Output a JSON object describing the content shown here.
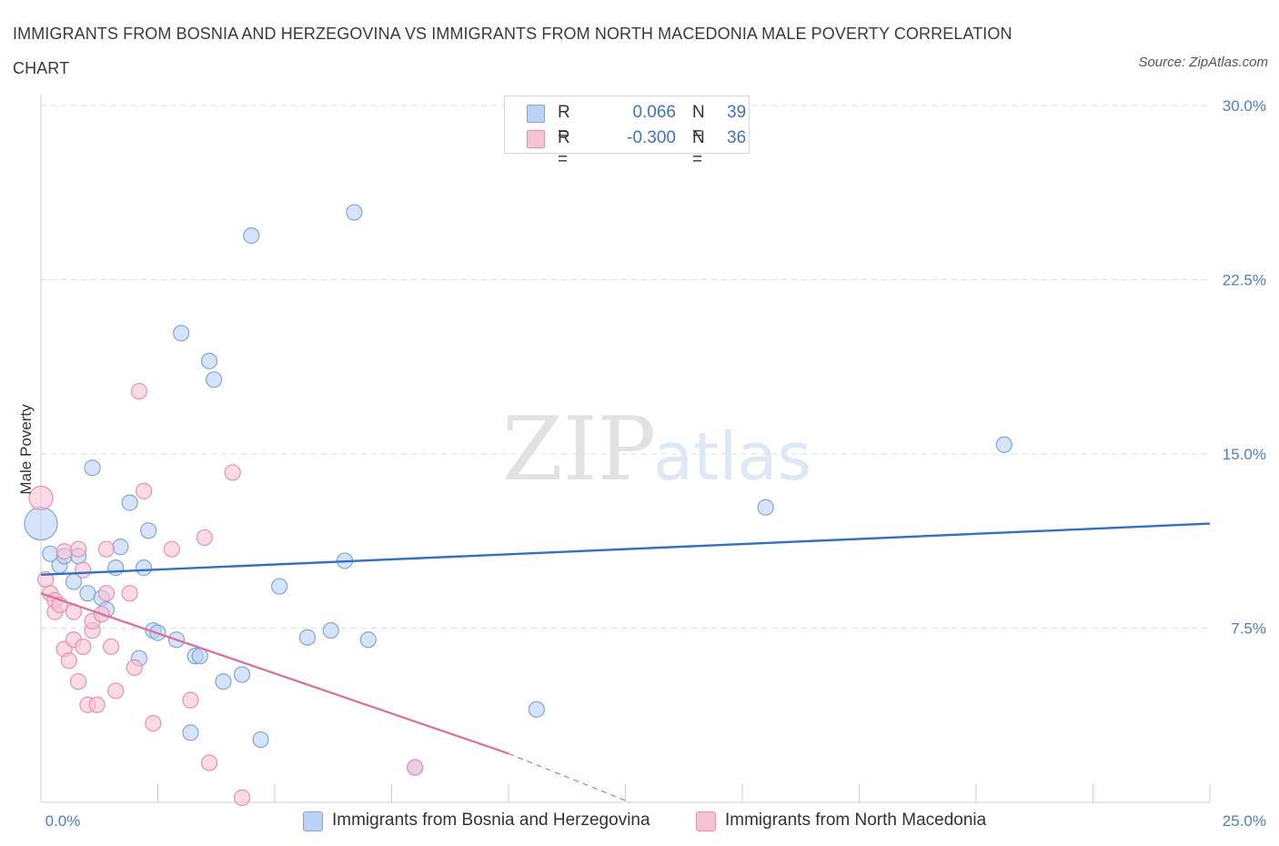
{
  "title": "IMMIGRANTS FROM BOSNIA AND HERZEGOVINA VS IMMIGRANTS FROM NORTH MACEDONIA MALE POVERTY CORRELATION CHART",
  "source": "Source: ZipAtlas.com",
  "watermark": {
    "zip": "ZIP",
    "atlas": "atlas"
  },
  "legend": {
    "series1": {
      "r_label": "R =",
      "r_value": "0.066",
      "n_label": "N =",
      "n_value": "39"
    },
    "series2": {
      "r_label": "R =",
      "r_value": "-0.300",
      "n_label": "N =",
      "n_value": "36"
    }
  },
  "colors": {
    "blue_fill": "#b9d2f5",
    "blue_stroke": "#7fa6dd",
    "blue_line": "#2f6fcf",
    "pink_fill": "#f7c2d3",
    "pink_stroke": "#e891ad",
    "pink_line": "#e06b94",
    "tick_text": "#4a7fcb",
    "grid": "#dedede"
  },
  "chart_data": {
    "type": "scatter",
    "ylabel": "Male Poverty",
    "xlim": [
      0,
      25
    ],
    "ylim": [
      0,
      30
    ],
    "y_ticks": [
      7.5,
      15.0,
      22.5,
      30.0
    ],
    "y_tick_labels": [
      "7.5%",
      "15.0%",
      "22.5%",
      "30.0%"
    ],
    "x_tick_labels": [
      "0.0%",
      "25.0%"
    ],
    "grid": true,
    "series": [
      {
        "name": "Immigrants from Bosnia and Herzegovina",
        "color": "#b9d2f5",
        "points": [
          [
            0.0,
            12.0
          ],
          [
            0.2,
            10.7
          ],
          [
            0.4,
            10.2
          ],
          [
            0.5,
            10.6
          ],
          [
            0.7,
            9.5
          ],
          [
            0.8,
            10.6
          ],
          [
            1.0,
            9.0
          ],
          [
            1.3,
            8.8
          ],
          [
            1.4,
            8.3
          ],
          [
            1.6,
            10.1
          ],
          [
            1.7,
            11.0
          ],
          [
            1.1,
            14.4
          ],
          [
            1.9,
            12.9
          ],
          [
            2.1,
            6.2
          ],
          [
            2.2,
            10.1
          ],
          [
            2.3,
            11.7
          ],
          [
            2.4,
            7.4
          ],
          [
            2.5,
            7.3
          ],
          [
            2.9,
            7.0
          ],
          [
            3.0,
            20.2
          ],
          [
            3.2,
            3.0
          ],
          [
            3.3,
            6.3
          ],
          [
            3.4,
            6.3
          ],
          [
            3.6,
            19.0
          ],
          [
            3.7,
            18.2
          ],
          [
            3.9,
            5.2
          ],
          [
            4.3,
            5.5
          ],
          [
            4.5,
            24.4
          ],
          [
            4.7,
            2.7
          ],
          [
            5.1,
            9.3
          ],
          [
            5.7,
            7.1
          ],
          [
            6.2,
            7.4
          ],
          [
            6.5,
            10.4
          ],
          [
            6.7,
            25.4
          ],
          [
            7.0,
            7.0
          ],
          [
            8.0,
            1.5
          ],
          [
            10.6,
            4.0
          ],
          [
            15.5,
            12.7
          ],
          [
            20.6,
            15.4
          ]
        ],
        "trend": {
          "x": [
            0,
            25
          ],
          "y": [
            9.8,
            12.0
          ]
        }
      },
      {
        "name": "Immigrants from North Macedonia",
        "color": "#f7c2d3",
        "points": [
          [
            0.0,
            13.1
          ],
          [
            0.1,
            9.6
          ],
          [
            0.2,
            9.0
          ],
          [
            0.3,
            8.2
          ],
          [
            0.3,
            8.7
          ],
          [
            0.4,
            8.5
          ],
          [
            0.5,
            10.8
          ],
          [
            0.5,
            6.6
          ],
          [
            0.6,
            6.1
          ],
          [
            0.7,
            7.0
          ],
          [
            0.7,
            8.2
          ],
          [
            0.8,
            10.9
          ],
          [
            0.8,
            5.2
          ],
          [
            0.9,
            10.0
          ],
          [
            0.9,
            6.7
          ],
          [
            1.0,
            4.2
          ],
          [
            1.1,
            7.4
          ],
          [
            1.1,
            7.8
          ],
          [
            1.2,
            4.2
          ],
          [
            1.3,
            8.1
          ],
          [
            1.4,
            9.0
          ],
          [
            1.4,
            10.9
          ],
          [
            1.5,
            6.7
          ],
          [
            1.6,
            4.8
          ],
          [
            1.9,
            9.0
          ],
          [
            2.0,
            5.8
          ],
          [
            2.1,
            17.7
          ],
          [
            2.2,
            13.4
          ],
          [
            2.4,
            3.4
          ],
          [
            2.8,
            10.9
          ],
          [
            3.2,
            4.4
          ],
          [
            3.5,
            11.4
          ],
          [
            3.6,
            1.7
          ],
          [
            4.1,
            14.2
          ],
          [
            4.3,
            0.2
          ],
          [
            8.0,
            1.5
          ]
        ],
        "trend": {
          "x": [
            0,
            10
          ],
          "y": [
            9.0,
            2.1
          ]
        },
        "trend_extension": {
          "x": [
            10,
            12.6
          ],
          "y": [
            2.1,
            0.0
          ]
        }
      }
    ]
  }
}
